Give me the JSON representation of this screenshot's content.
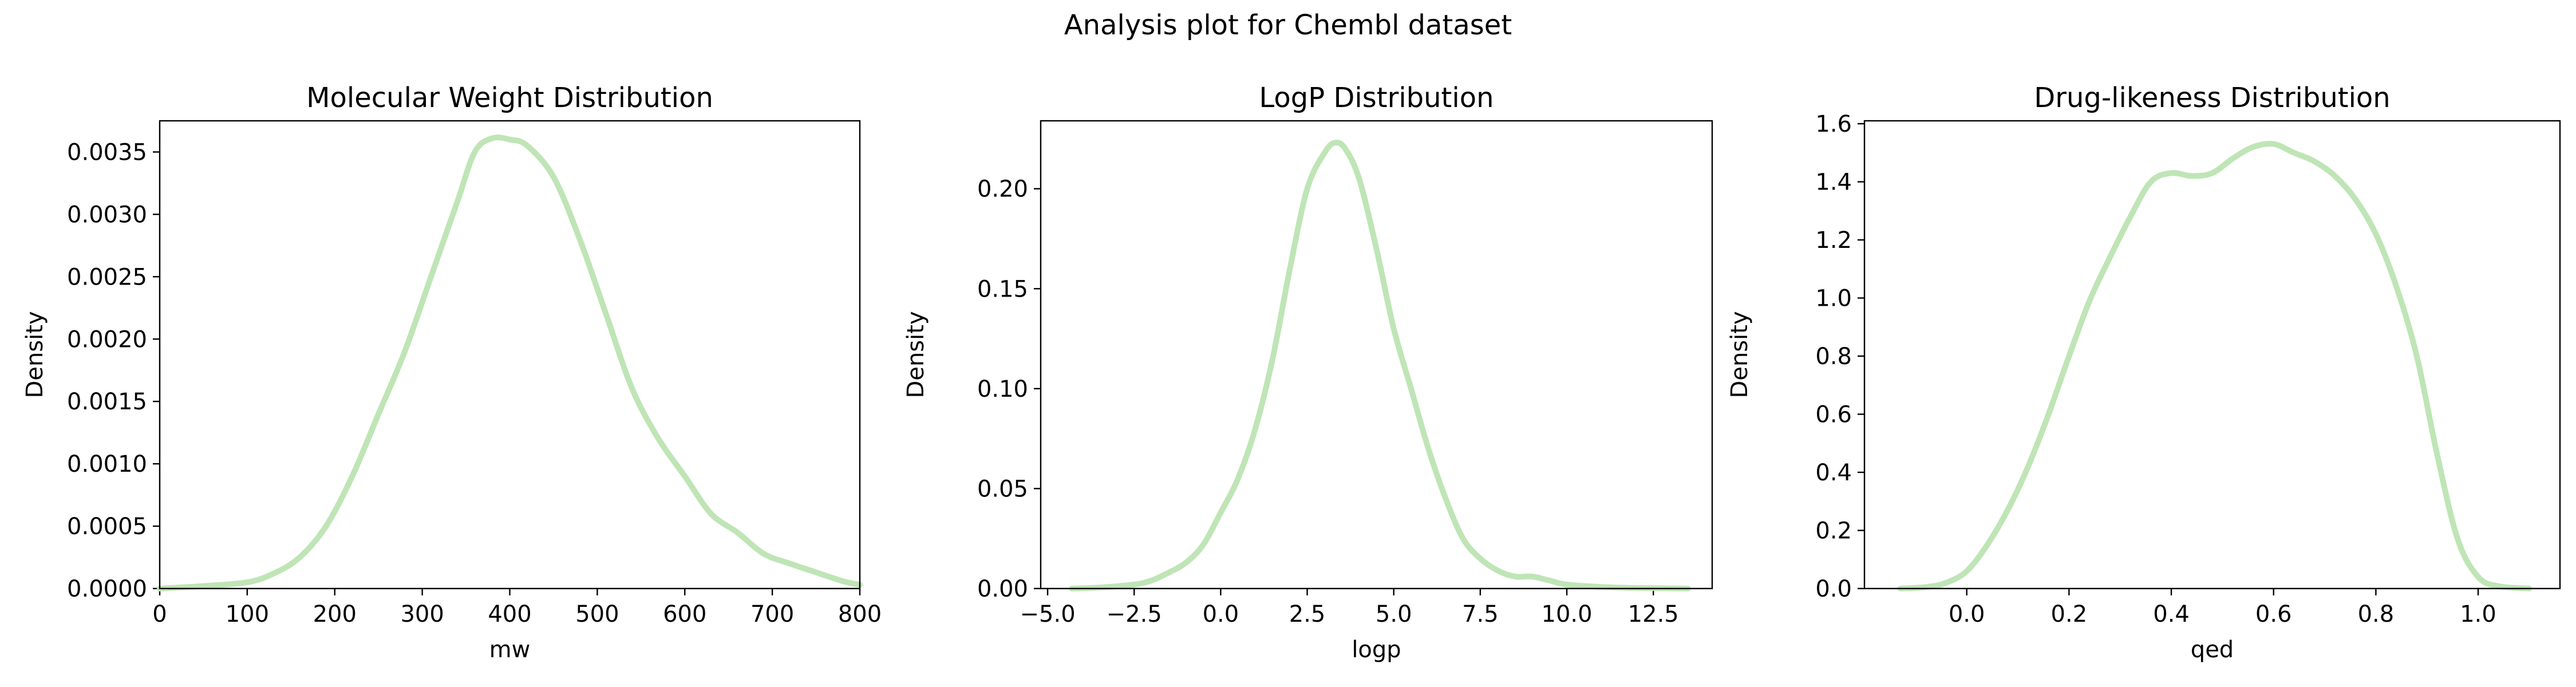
{
  "figure": {
    "suptitle": "Analysis plot for Chembl dataset"
  },
  "colors": {
    "curve": "#bfe5b6",
    "axes": "#000000"
  },
  "chart_data": [
    {
      "type": "line",
      "title": "Molecular Weight Distribution",
      "xlabel": "mw",
      "ylabel": "Density",
      "xlim": [
        0,
        800
      ],
      "ylim": [
        0,
        0.00375
      ],
      "xticks": [
        0,
        100,
        200,
        300,
        400,
        500,
        600,
        700,
        800
      ],
      "xtick_labels": [
        "0",
        "100",
        "200",
        "300",
        "400",
        "500",
        "600",
        "700",
        "800"
      ],
      "yticks": [
        0,
        0.0005,
        0.001,
        0.0015,
        0.002,
        0.0025,
        0.003,
        0.0035
      ],
      "ytick_labels": [
        "0.0000",
        "0.0005",
        "0.0010",
        "0.0015",
        "0.0020",
        "0.0025",
        "0.0030",
        "0.0035"
      ],
      "grid": false,
      "series": [
        {
          "x": [
            0,
            50,
            100,
            130,
            160,
            190,
            220,
            250,
            280,
            310,
            340,
            360,
            380,
            400,
            420,
            450,
            480,
            510,
            540,
            570,
            600,
            630,
            660,
            690,
            720,
            750,
            780,
            800
          ],
          "y": [
            0.0,
            2e-05,
            5e-05,
            0.00012,
            0.00025,
            0.0005,
            0.0009,
            0.0014,
            0.0019,
            0.0025,
            0.0031,
            0.0035,
            0.00361,
            0.0036,
            0.00355,
            0.0033,
            0.0028,
            0.0022,
            0.0016,
            0.0012,
            0.0009,
            0.0006,
            0.00045,
            0.00028,
            0.0002,
            0.00013,
            6e-05,
            3e-05
          ]
        }
      ]
    },
    {
      "type": "line",
      "title": "LogP Distribution",
      "xlabel": "logp",
      "ylabel": "Density",
      "xlim": [
        -5.2,
        14.2
      ],
      "ylim": [
        0,
        0.234
      ],
      "xticks": [
        -5,
        -2.5,
        0,
        2.5,
        5,
        7.5,
        10,
        12.5
      ],
      "xtick_labels": [
        "−5.0",
        "−2.5",
        "0.0",
        "2.5",
        "5.0",
        "7.5",
        "10.0",
        "12.5"
      ],
      "yticks": [
        0,
        0.05,
        0.1,
        0.15,
        0.2
      ],
      "ytick_labels": [
        "0.00",
        "0.05",
        "0.10",
        "0.15",
        "0.20"
      ],
      "grid": false,
      "series": [
        {
          "x": [
            -4.3,
            -3.5,
            -2.5,
            -2.0,
            -1.5,
            -1.0,
            -0.5,
            0.0,
            0.5,
            1.0,
            1.5,
            2.0,
            2.5,
            3.0,
            3.3,
            3.6,
            4.0,
            4.5,
            5.0,
            5.5,
            6.0,
            6.5,
            7.0,
            7.5,
            8.0,
            8.5,
            9.0,
            9.5,
            10.0,
            11.0,
            12.0,
            13.5
          ],
          "y": [
            0.0,
            0.0005,
            0.002,
            0.004,
            0.008,
            0.013,
            0.022,
            0.038,
            0.055,
            0.08,
            0.115,
            0.16,
            0.2,
            0.218,
            0.223,
            0.22,
            0.205,
            0.17,
            0.13,
            0.1,
            0.07,
            0.045,
            0.025,
            0.015,
            0.009,
            0.006,
            0.006,
            0.004,
            0.002,
            0.0008,
            0.0003,
            0.0
          ]
        }
      ]
    },
    {
      "type": "line",
      "title": "Drug-likeness Distribution",
      "xlabel": "qed",
      "ylabel": "Density",
      "xlim": [
        -0.2,
        1.16
      ],
      "ylim": [
        0,
        1.61
      ],
      "xticks": [
        0.0,
        0.2,
        0.4,
        0.6,
        0.8,
        1.0
      ],
      "xtick_labels": [
        "0.0",
        "0.2",
        "0.4",
        "0.6",
        "0.8",
        "1.0"
      ],
      "yticks": [
        0,
        0.2,
        0.4,
        0.6,
        0.8,
        1.0,
        1.2,
        1.4,
        1.6
      ],
      "ytick_labels": [
        "0.0",
        "0.2",
        "0.4",
        "0.6",
        "0.8",
        "1.0",
        "1.2",
        "1.4",
        "1.6"
      ],
      "grid": false,
      "series": [
        {
          "x": [
            -0.13,
            -0.08,
            -0.04,
            0.0,
            0.04,
            0.08,
            0.12,
            0.16,
            0.2,
            0.24,
            0.28,
            0.32,
            0.36,
            0.4,
            0.44,
            0.48,
            0.52,
            0.56,
            0.6,
            0.64,
            0.68,
            0.72,
            0.76,
            0.8,
            0.84,
            0.88,
            0.92,
            0.96,
            1.0,
            1.04,
            1.1
          ],
          "y": [
            0.0,
            0.005,
            0.02,
            0.06,
            0.15,
            0.27,
            0.42,
            0.6,
            0.8,
            0.99,
            1.14,
            1.28,
            1.4,
            1.43,
            1.42,
            1.43,
            1.48,
            1.52,
            1.53,
            1.5,
            1.47,
            1.42,
            1.34,
            1.22,
            1.04,
            0.8,
            0.46,
            0.17,
            0.04,
            0.008,
            0.0
          ]
        }
      ]
    }
  ]
}
